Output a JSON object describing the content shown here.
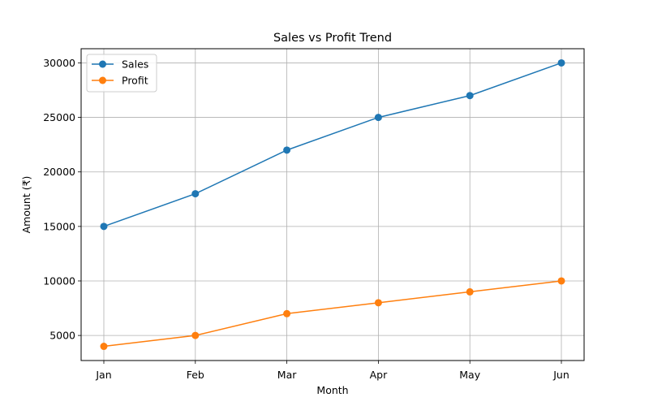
{
  "chart_data": {
    "type": "line",
    "title": "Sales vs Profit Trend",
    "xlabel": "Month",
    "ylabel": "Amount (₹)",
    "categories": [
      "Jan",
      "Feb",
      "Mar",
      "Apr",
      "May",
      "Jun"
    ],
    "ylim": [
      2700,
      31300
    ],
    "yticks": [
      5000,
      10000,
      15000,
      20000,
      25000,
      30000
    ],
    "grid": true,
    "legend_position": "top-left",
    "series": [
      {
        "name": "Sales",
        "color": "#1f77b4",
        "marker": "circle",
        "values": [
          15000,
          18000,
          22000,
          25000,
          27000,
          30000
        ]
      },
      {
        "name": "Profit",
        "color": "#ff7f0e",
        "marker": "circle",
        "values": [
          4000,
          5000,
          7000,
          8000,
          9000,
          10000
        ]
      }
    ]
  }
}
